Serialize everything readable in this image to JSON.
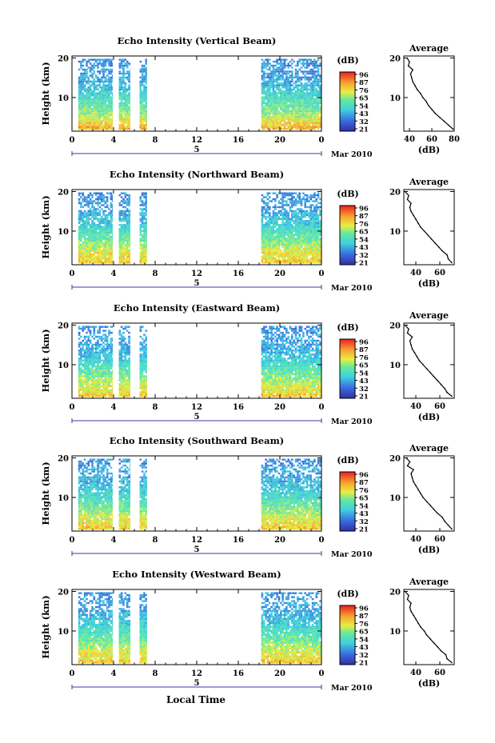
{
  "common": {
    "xlabel": "Local Time",
    "ylabel": "Height (km)",
    "date_label": "Mar 2010",
    "day_label": "5",
    "colorbar_unit": "(dB)",
    "colorbar_ticks": [
      "96",
      "87",
      "76",
      "65",
      "54",
      "43",
      "32",
      "21"
    ],
    "x_ticks": [
      "0",
      "4",
      "8",
      "12",
      "16",
      "20",
      "0"
    ],
    "y_ticks": [
      "20",
      "10"
    ],
    "avg_title": "Average",
    "avg_xlabel": "(dB)",
    "colors": {
      "low": "#3030a8",
      "mid": "#40d0e0",
      "high": "#e83020",
      "axis": "#000000",
      "day_bar": "#3a3aa0"
    }
  },
  "chart_data": [
    {
      "type": "heatmap",
      "title": "Echo Intensity (Vertical Beam)",
      "xlabel": "Local Time",
      "ylabel": "Height (km)",
      "xlim": [
        0,
        24
      ],
      "ylim": [
        1.5,
        20.5
      ],
      "data_intervals_hours": [
        [
          0.6,
          3.9
        ],
        [
          4.5,
          5.6
        ],
        [
          6.5,
          7.2
        ],
        [
          18.2,
          24.0
        ]
      ],
      "colorbar_range_db": [
        21,
        96
      ],
      "average_profile": {
        "xlim": [
          35,
          80
        ],
        "x_ticks": [
          "40",
          "60",
          "80"
        ],
        "height_km": [
          2,
          3,
          4,
          5,
          6,
          7,
          8,
          9,
          10,
          11,
          12,
          13,
          14,
          15,
          16,
          17,
          18,
          19,
          20
        ],
        "avg_db": [
          79,
          75,
          71,
          67,
          63,
          60,
          57,
          55,
          52,
          50,
          47,
          45,
          43,
          42,
          41,
          43,
          39,
          40,
          38
        ]
      }
    },
    {
      "type": "heatmap",
      "title": "Echo Intensity (Northward Beam)",
      "xlabel": "Local Time",
      "ylabel": "Height (km)",
      "xlim": [
        0,
        24
      ],
      "ylim": [
        1.5,
        20.5
      ],
      "data_intervals_hours": [
        [
          0.6,
          3.9
        ],
        [
          4.5,
          5.6
        ],
        [
          6.5,
          7.2
        ],
        [
          18.2,
          24.0
        ]
      ],
      "colorbar_range_db": [
        21,
        96
      ],
      "average_profile": {
        "xlim": [
          30,
          72
        ],
        "x_ticks": [
          "40",
          "60"
        ],
        "height_km": [
          2,
          3,
          4,
          5,
          6,
          7,
          8,
          9,
          10,
          11,
          12,
          13,
          14,
          15,
          16,
          17,
          18,
          19,
          20
        ],
        "avg_db": [
          70,
          67,
          66,
          62,
          59,
          56,
          53,
          50,
          47,
          44,
          42,
          40,
          38,
          36,
          35,
          36,
          33,
          34,
          31
        ]
      }
    },
    {
      "type": "heatmap",
      "title": "Echo Intensity (Eastward Beam)",
      "xlabel": "Local Time",
      "ylabel": "Height (km)",
      "xlim": [
        0,
        24
      ],
      "ylim": [
        1.5,
        20.5
      ],
      "data_intervals_hours": [
        [
          0.6,
          3.9
        ],
        [
          4.5,
          5.6
        ],
        [
          6.5,
          7.2
        ],
        [
          18.2,
          24.0
        ]
      ],
      "colorbar_range_db": [
        21,
        96
      ],
      "average_profile": {
        "xlim": [
          30,
          72
        ],
        "x_ticks": [
          "40",
          "60"
        ],
        "height_km": [
          2,
          3,
          4,
          5,
          6,
          7,
          8,
          9,
          10,
          11,
          12,
          13,
          14,
          15,
          16,
          17,
          18,
          19,
          20
        ],
        "avg_db": [
          70,
          66,
          64,
          61,
          58,
          55,
          52,
          49,
          46,
          43,
          41,
          39,
          37,
          36,
          35,
          37,
          33,
          34,
          31
        ]
      }
    },
    {
      "type": "heatmap",
      "title": "Echo Intensity (Southward Beam)",
      "xlabel": "Local Time",
      "ylabel": "Height (km)",
      "xlim": [
        0,
        24
      ],
      "ylim": [
        1.5,
        20.5
      ],
      "data_intervals_hours": [
        [
          0.6,
          3.9
        ],
        [
          4.5,
          5.6
        ],
        [
          6.5,
          7.2
        ],
        [
          18.2,
          24.0
        ]
      ],
      "colorbar_range_db": [
        21,
        96
      ],
      "average_profile": {
        "xlim": [
          30,
          72
        ],
        "x_ticks": [
          "40",
          "60"
        ],
        "height_km": [
          2,
          3,
          4,
          5,
          6,
          7,
          8,
          9,
          10,
          11,
          12,
          13,
          14,
          15,
          16,
          17,
          18,
          19,
          20
        ],
        "avg_db": [
          70,
          67,
          64,
          62,
          58,
          55,
          52,
          49,
          46,
          44,
          42,
          40,
          38,
          37,
          36,
          38,
          33,
          35,
          32
        ]
      }
    },
    {
      "type": "heatmap",
      "title": "Echo Intensity (Westward Beam)",
      "xlabel": "Local Time",
      "ylabel": "Height (km)",
      "xlim": [
        0,
        24
      ],
      "ylim": [
        1.5,
        20.5
      ],
      "data_intervals_hours": [
        [
          0.6,
          3.9
        ],
        [
          4.5,
          5.6
        ],
        [
          6.5,
          7.2
        ],
        [
          18.2,
          24.0
        ]
      ],
      "colorbar_range_db": [
        21,
        96
      ],
      "average_profile": {
        "xlim": [
          30,
          72
        ],
        "x_ticks": [
          "40",
          "60"
        ],
        "height_km": [
          2,
          3,
          4,
          5,
          6,
          7,
          8,
          9,
          10,
          11,
          12,
          13,
          14,
          15,
          16,
          17,
          18,
          19,
          20
        ],
        "avg_db": [
          70,
          66,
          65,
          61,
          58,
          55,
          52,
          49,
          47,
          44,
          42,
          40,
          38,
          36,
          35,
          36,
          33,
          34,
          31
        ]
      }
    }
  ]
}
